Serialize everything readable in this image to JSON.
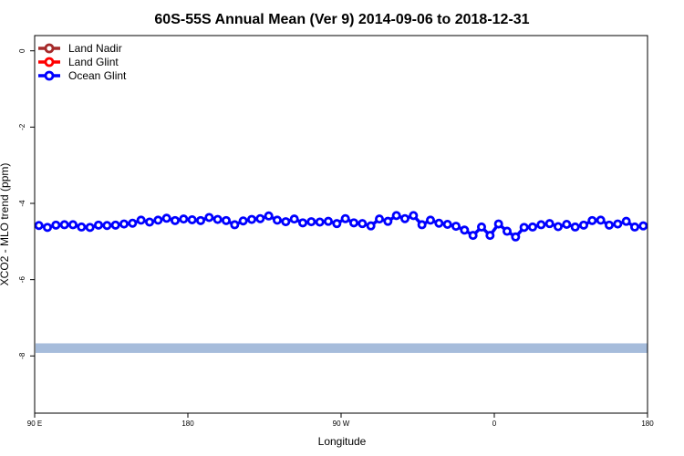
{
  "chart_data": {
    "type": "line",
    "title": "60S-55S Annual Mean (Ver 9)   2014-09-06 to 2018-12-31",
    "xlabel": "Longitude",
    "ylabel": "XCO2 - MLO trend (ppm)",
    "xlim": [
      90,
      450
    ],
    "ylim": [
      -9.5,
      0.4
    ],
    "x_ticks": [
      {
        "value": 90,
        "label": "90 E"
      },
      {
        "value": 180,
        "label": "180"
      },
      {
        "value": 270,
        "label": "90 W"
      },
      {
        "value": 360,
        "label": "0"
      },
      {
        "value": 450,
        "label": "180"
      }
    ],
    "y_ticks": [
      {
        "value": 0,
        "label": "0"
      },
      {
        "value": -2,
        "label": "-2"
      },
      {
        "value": -4,
        "label": "-4"
      },
      {
        "value": -6,
        "label": "-6"
      },
      {
        "value": -8,
        "label": "-8"
      }
    ],
    "legend_position": "top-left",
    "series": [
      {
        "name": "Land Nadir",
        "color": "#a52a2a",
        "x": [],
        "values": []
      },
      {
        "name": "Land Glint",
        "color": "#ff0000",
        "x": [],
        "values": []
      },
      {
        "name": "Ocean Glint",
        "color": "#0000ff",
        "x": [
          92.5,
          97.5,
          102.5,
          107.5,
          112.5,
          117.5,
          122.5,
          127.5,
          132.5,
          137.5,
          142.5,
          147.5,
          152.5,
          157.5,
          162.5,
          167.5,
          172.5,
          177.5,
          182.5,
          187.5,
          192.5,
          197.5,
          202.5,
          207.5,
          212.5,
          217.5,
          222.5,
          227.5,
          232.5,
          237.5,
          242.5,
          247.5,
          252.5,
          257.5,
          262.5,
          267.5,
          272.5,
          277.5,
          282.5,
          287.5,
          292.5,
          297.5,
          302.5,
          307.5,
          312.5,
          317.5,
          322.5,
          327.5,
          332.5,
          337.5,
          342.5,
          347.5,
          352.5,
          357.5,
          362.5,
          367.5,
          372.5,
          377.5,
          382.5,
          387.5,
          392.5,
          397.5,
          402.5,
          407.5,
          412.5,
          417.5,
          422.5,
          427.5,
          432.5,
          437.5,
          442.5,
          447.5
        ],
        "values": [
          -4.58,
          -4.63,
          -4.57,
          -4.56,
          -4.56,
          -4.62,
          -4.63,
          -4.57,
          -4.58,
          -4.57,
          -4.54,
          -4.52,
          -4.44,
          -4.49,
          -4.44,
          -4.39,
          -4.45,
          -4.41,
          -4.43,
          -4.45,
          -4.37,
          -4.42,
          -4.45,
          -4.56,
          -4.46,
          -4.42,
          -4.4,
          -4.33,
          -4.44,
          -4.48,
          -4.41,
          -4.51,
          -4.48,
          -4.49,
          -4.47,
          -4.53,
          -4.4,
          -4.51,
          -4.53,
          -4.59,
          -4.41,
          -4.47,
          -4.32,
          -4.4,
          -4.32,
          -4.56,
          -4.44,
          -4.52,
          -4.55,
          -4.6,
          -4.7,
          -4.84,
          -4.62,
          -4.84,
          -4.54,
          -4.73,
          -4.88,
          -4.63,
          -4.62,
          -4.56,
          -4.53,
          -4.61,
          -4.55,
          -4.62,
          -4.57,
          -4.45,
          -4.44,
          -4.57,
          -4.54,
          -4.47,
          -4.62,
          -4.59
        ]
      }
    ],
    "band": {
      "from": -7.67,
      "to": -7.92,
      "color": "#a6bcdb"
    }
  }
}
